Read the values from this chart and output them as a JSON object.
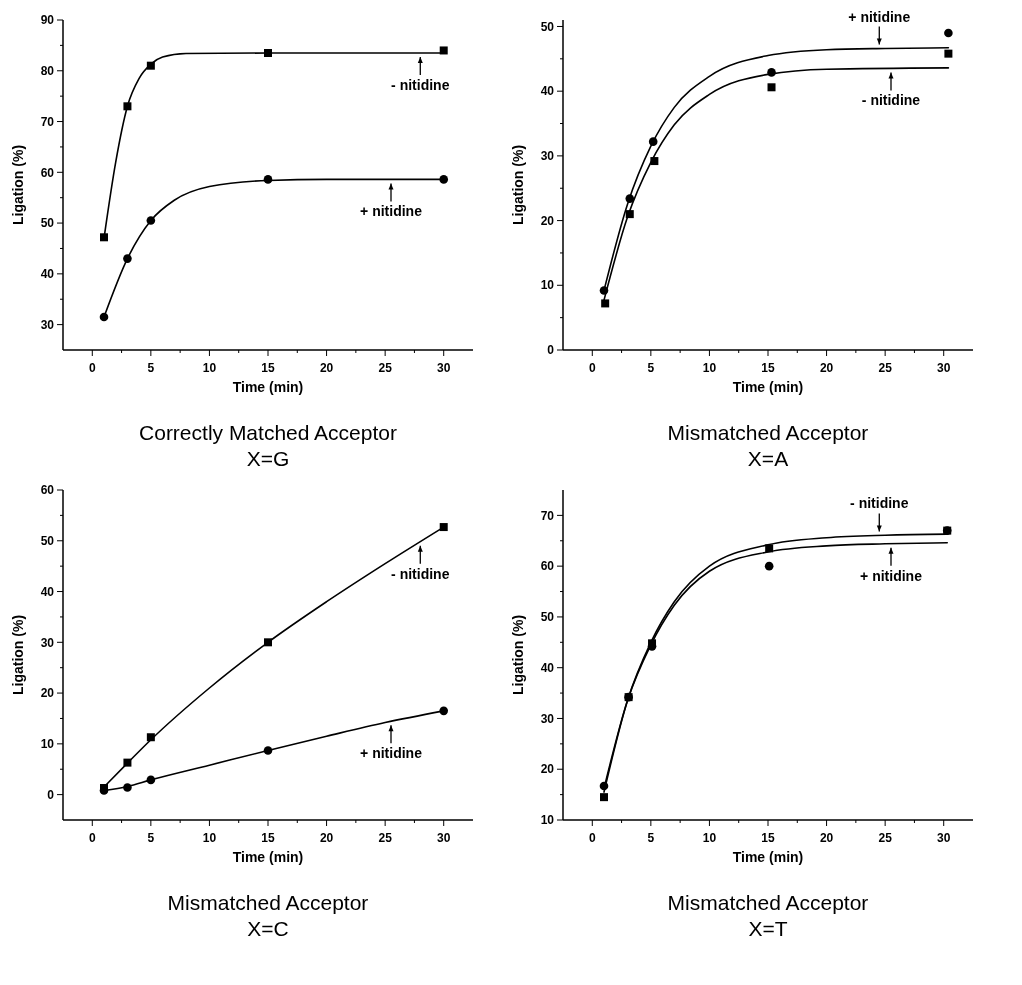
{
  "chart_data": [
    {
      "type": "scatter",
      "title": "Correctly Matched Acceptor",
      "subtitle": "X=G",
      "legend": "right",
      "xlabel": "Time (min)",
      "ylabel": "Ligation (%)",
      "xlim": [
        -2.5,
        32.5
      ],
      "xticks": [
        0,
        5,
        10,
        15,
        20,
        25,
        30
      ],
      "ylim": [
        25,
        90
      ],
      "yticks": [
        30,
        40,
        50,
        60,
        70,
        80,
        90
      ],
      "grid": false,
      "series": [
        {
          "type": "scatter",
          "marker": "square",
          "color": "#000000",
          "x": [
            1,
            3,
            5,
            15,
            30
          ],
          "values": [
            47.2,
            73,
            81,
            83.5,
            84
          ]
        },
        {
          "type": "scatter",
          "marker": "circle",
          "color": "#000000",
          "x": [
            1,
            3,
            5,
            15,
            30
          ],
          "values": [
            31.5,
            43,
            50.5,
            58.6,
            58.6
          ]
        },
        {
          "type": "line",
          "name": "- nitidine",
          "marker": "none",
          "color": "#000000",
          "x": [
            1,
            2,
            3,
            4,
            5,
            6,
            8,
            15,
            30
          ],
          "values": [
            47,
            62,
            73,
            78.5,
            81.3,
            82.7,
            83.4,
            83.5,
            83.5
          ]
        },
        {
          "type": "line",
          "name": "+ nitidine",
          "marker": "none",
          "color": "#000000",
          "x": [
            1,
            3,
            5,
            7,
            10,
            15,
            20,
            30
          ],
          "values": [
            31.5,
            43,
            50.5,
            54.5,
            57.2,
            58.4,
            58.6,
            58.6
          ]
        }
      ]
    },
    {
      "type": "scatter",
      "title": "Mismatched Acceptor",
      "subtitle": "X=A",
      "xlabel": "Time (min)",
      "ylabel": "Ligation (%)",
      "xlim": [
        -2.5,
        32.5
      ],
      "xticks": [
        0,
        5,
        10,
        15,
        20,
        25,
        30
      ],
      "ylim": [
        0,
        51
      ],
      "yticks": [
        0,
        10,
        20,
        30,
        40,
        50
      ],
      "grid": false,
      "series": [
        {
          "type": "scatter",
          "marker": "circle",
          "color": "#000000",
          "x": [
            1,
            3.2,
            5.2,
            15.3,
            30.4
          ],
          "values": [
            9.2,
            23.4,
            32.2,
            42.9,
            49
          ]
        },
        {
          "type": "scatter",
          "marker": "square",
          "color": "#000000",
          "x": [
            1.1,
            3.2,
            5.3,
            15.3,
            30.4
          ],
          "values": [
            7.2,
            21,
            29.2,
            40.6,
            45.8
          ]
        },
        {
          "type": "line",
          "name": "+ nitidine",
          "marker": "none",
          "color": "#000000",
          "x": [
            1,
            3,
            5,
            7,
            10,
            15,
            20,
            25,
            30.4
          ],
          "values": [
            9.2,
            22.5,
            31.5,
            37.5,
            42.3,
            45.5,
            46.4,
            46.6,
            46.7
          ]
        },
        {
          "type": "line",
          "name": "- nitidine",
          "marker": "none",
          "color": "#000000",
          "x": [
            1,
            3,
            5,
            7,
            10,
            15,
            20,
            30.4
          ],
          "values": [
            7.7,
            20.5,
            29,
            34.8,
            39.5,
            42.6,
            43.4,
            43.6
          ]
        }
      ]
    },
    {
      "type": "scatter",
      "title": "Mismatched Acceptor",
      "subtitle": "X=C",
      "legend": "right",
      "xlabel": "Time (min)",
      "ylabel": "Ligation (%)",
      "xlim": [
        -2.5,
        32.5
      ],
      "xticks": [
        0,
        5,
        10,
        15,
        20,
        25,
        30
      ],
      "ylim": [
        -5,
        60
      ],
      "yticks": [
        0,
        10,
        20,
        30,
        40,
        50,
        60
      ],
      "grid": false,
      "series": [
        {
          "type": "scatter",
          "marker": "square",
          "color": "#000000",
          "x": [
            1,
            3,
            5,
            15,
            30
          ],
          "values": [
            1.3,
            6.3,
            11.3,
            30,
            52.7
          ]
        },
        {
          "type": "scatter",
          "marker": "circle",
          "color": "#000000",
          "x": [
            1,
            3,
            5,
            15,
            30
          ],
          "values": [
            0.8,
            1.4,
            2.9,
            8.7,
            16.5
          ]
        },
        {
          "type": "line",
          "name": "- nitidine",
          "marker": "none",
          "color": "#000000",
          "x": [
            1,
            3,
            5,
            10,
            15,
            20,
            25,
            30
          ],
          "values": [
            1.5,
            6.2,
            10.8,
            21,
            30,
            38,
            45.5,
            52.7
          ]
        },
        {
          "type": "line",
          "name": "+ nitidine",
          "marker": "none",
          "color": "#000000",
          "x": [
            1,
            3,
            5,
            10,
            15,
            20,
            25,
            30
          ],
          "values": [
            0.8,
            1.6,
            2.9,
            5.8,
            8.7,
            11.5,
            14.2,
            16.5
          ]
        }
      ]
    },
    {
      "type": "scatter",
      "title": "Mismatched Acceptor",
      "subtitle": "X=T",
      "xlabel": "Time (min)",
      "ylabel": "Ligation (%)",
      "xlim": [
        -2.5,
        32.5
      ],
      "xticks": [
        0,
        5,
        10,
        15,
        20,
        25,
        30
      ],
      "ylim": [
        10,
        75
      ],
      "yticks": [
        10,
        20,
        30,
        40,
        50,
        60,
        70
      ],
      "grid": false,
      "series": [
        {
          "type": "scatter",
          "marker": "circle",
          "color": "#000000",
          "x": [
            1,
            3.1,
            5.1,
            15.1,
            30.3
          ],
          "values": [
            16.7,
            34.2,
            44.2,
            60,
            67
          ]
        },
        {
          "type": "scatter",
          "marker": "square",
          "color": "#000000",
          "x": [
            1,
            3.1,
            5.1,
            15.1,
            30.3
          ],
          "values": [
            14.5,
            34.2,
            44.8,
            63.5,
            67
          ]
        },
        {
          "type": "line",
          "name": "- nitidine",
          "marker": "none",
          "color": "#000000",
          "x": [
            1,
            3,
            5,
            7,
            10,
            15,
            20,
            25,
            30.3
          ],
          "values": [
            15.5,
            33.5,
            45,
            53,
            60,
            64.2,
            65.6,
            66.1,
            66.3
          ]
        },
        {
          "type": "line",
          "name": "+ nitidine",
          "marker": "none",
          "color": "#000000",
          "x": [
            1,
            3,
            5,
            7,
            10,
            15,
            20,
            25,
            30.3
          ],
          "values": [
            16.2,
            33.5,
            44.5,
            52.3,
            59,
            62.8,
            64,
            64.4,
            64.6
          ]
        }
      ]
    }
  ]
}
